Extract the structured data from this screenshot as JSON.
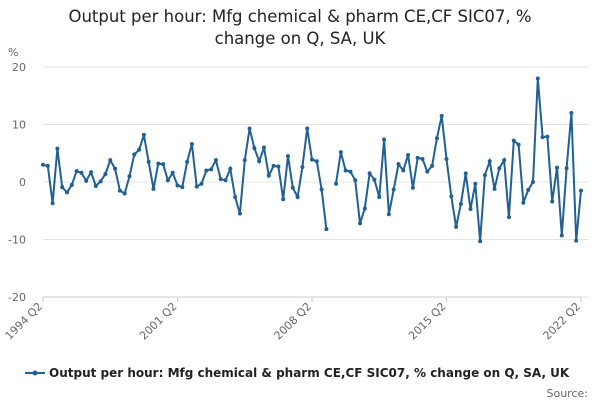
{
  "chart_data": {
    "type": "line",
    "title": "Output per hour: Mfg chemical & pharm CE,CF SIC07, % change on Q, SA, UK",
    "y_unit": "%",
    "source": "Source:",
    "categories": [
      "1994 Q2",
      null,
      null,
      null,
      null,
      null,
      null,
      null,
      null,
      null,
      null,
      null,
      null,
      null,
      null,
      null,
      null,
      null,
      null,
      null,
      null,
      null,
      null,
      null,
      null,
      null,
      null,
      null,
      "2001 Q2",
      null,
      null,
      null,
      null,
      null,
      null,
      null,
      null,
      null,
      null,
      null,
      null,
      null,
      null,
      null,
      null,
      null,
      null,
      null,
      null,
      null,
      null,
      null,
      null,
      null,
      null,
      null,
      "2008 Q2",
      null,
      null,
      null,
      null,
      null,
      null,
      null,
      null,
      null,
      null,
      null,
      null,
      null,
      null,
      null,
      null,
      null,
      null,
      null,
      null,
      null,
      null,
      null,
      null,
      null,
      null,
      null,
      "2015 Q2",
      null,
      null,
      null,
      null,
      null,
      null,
      null,
      null,
      null,
      null,
      null,
      null,
      null,
      null,
      null,
      null,
      null,
      null,
      null,
      null,
      null,
      null,
      null,
      null,
      null,
      null,
      null,
      "2022 Q2"
    ],
    "series": [
      {
        "name": "Output per hour: Mfg chemical & pharm CE,CF SIC07, % change on Q, SA, UK",
        "color": "#206095",
        "values": [
          3.0,
          2.8,
          -3.7,
          5.8,
          -0.9,
          -1.8,
          -0.5,
          1.9,
          1.6,
          0.2,
          1.7,
          -0.7,
          0.1,
          1.4,
          3.8,
          2.3,
          -1.5,
          -2.0,
          1.0,
          4.8,
          5.6,
          8.2,
          3.5,
          -1.2,
          3.2,
          3.1,
          0.3,
          1.6,
          -0.6,
          -0.9,
          3.5,
          6.6,
          -0.8,
          -0.3,
          2.0,
          2.2,
          3.8,
          0.5,
          0.3,
          2.3,
          -2.6,
          -5.5,
          3.8,
          9.3,
          5.9,
          3.6,
          6.0,
          1.1,
          2.8,
          2.7,
          -3.0,
          4.5,
          -1.0,
          -2.6,
          2.6,
          9.3,
          3.9,
          3.6,
          -1.3,
          -8.2,
          null,
          -0.3,
          5.2,
          2.0,
          1.8,
          0.3,
          -7.2,
          -4.6,
          1.5,
          0.4,
          -2.6,
          7.4,
          -5.6,
          -1.3,
          3.1,
          2.0,
          4.7,
          -1.0,
          4.2,
          4.0,
          1.8,
          2.8,
          7.6,
          11.5,
          4.0,
          -2.5,
          -7.8,
          -3.8,
          1.5,
          -4.7,
          -0.3,
          -10.3,
          1.2,
          3.6,
          -1.2,
          2.4,
          3.8,
          -6.1,
          7.2,
          6.5,
          -3.6,
          -1.4,
          0,
          18,
          7.8,
          7.9,
          -3.4,
          2.5,
          -9.3,
          2.4,
          12.0,
          -10.2,
          -1.5
        ]
      }
    ],
    "ylim": [
      -20,
      20
    ],
    "yticks": [
      -20,
      -10,
      0,
      10,
      20
    ],
    "grid": true
  }
}
